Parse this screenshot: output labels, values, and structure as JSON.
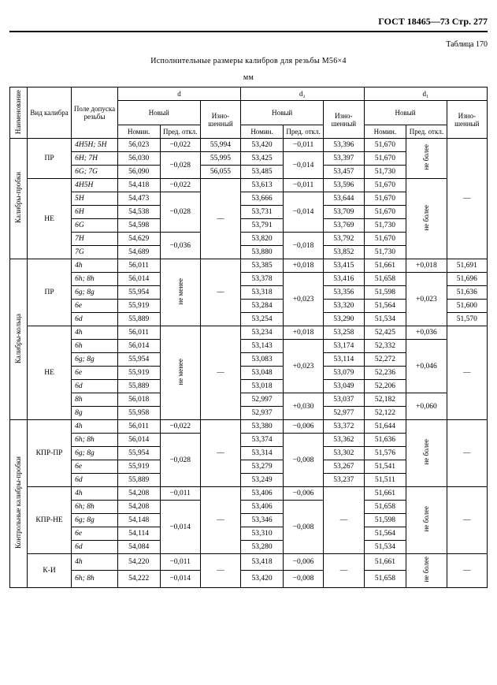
{
  "header": {
    "gost": "ГОСТ 18465—73 Стр. 277",
    "tableNo": "Таблица 170",
    "title1": "Исполнительные размеры калибров для резьбы М56×4",
    "title2": "мм"
  },
  "cols": {
    "naimen": "Наименование",
    "vid": "Вид калибра",
    "pole": "Поле допуска резьбы",
    "d": "d",
    "d2": "d₂",
    "d1": "d₁",
    "novyj": "Новый",
    "nomin": "Номин.",
    "pred": "Пред. откл.",
    "izno": "Изно-шенный",
    "nebolee": "не более",
    "nemenee": "не менее"
  },
  "groups": {
    "kp": "Калибры-пробки",
    "kk": "Калибры-кольца",
    "kkp": "Контрольные калибры-пробки"
  },
  "vid": {
    "PR": "ПР",
    "NE": "НЕ",
    "KPRPR": "КПР-ПР",
    "KPRNE": "КПР-НЕ",
    "KI": "К-И"
  },
  "dash": "—",
  "rows_kp_pr": [
    {
      "pd": "4H5H; 5H",
      "d_nom": "56,023",
      "d_po": "−0,022",
      "d_iz": "55,994",
      "d2_nom": "53,420",
      "d2_po": "−0,011",
      "d2_iz": "53,396",
      "d1_nom": "51,670"
    },
    {
      "pd": "6H; 7H",
      "d_nom": "56,030",
      "d_po": "",
      "d_iz": "55,995",
      "d2_nom": "53,425",
      "d2_po": "",
      "d2_iz": "53,397",
      "d1_nom": "51,670"
    },
    {
      "pd": "6G; 7G",
      "d_nom": "56,090",
      "d_po": "−0,028",
      "d_iz": "56,055",
      "d2_nom": "53,485",
      "d2_po": "−0,014",
      "d2_iz": "53,457",
      "d1_nom": "51,730"
    }
  ],
  "rows_kp_ne": [
    {
      "pd": "4H5H",
      "d_nom": "54,418",
      "d_po": "−0,022",
      "d2_nom": "53,613",
      "d2_po": "−0,011",
      "d2_iz": "53,596",
      "d1_nom": "51,670"
    },
    {
      "pd": "5H",
      "d_nom": "54,473",
      "d_po_span": "−0,028",
      "d2_nom": "53,666",
      "d2_po_span": "−0,014",
      "d2_iz": "53,644",
      "d1_nom": "51,670"
    },
    {
      "pd": "6H",
      "d_nom": "54,538",
      "d2_nom": "53,731",
      "d2_iz": "53,709",
      "d1_nom": "51,670"
    },
    {
      "pd": "6G",
      "d_nom": "54,598",
      "d2_nom": "53,791",
      "d2_iz": "53,769",
      "d1_nom": "51,730"
    },
    {
      "pd": "7H",
      "d_nom": "54,629",
      "d_po": "−0,036",
      "d2_nom": "53,820",
      "d2_po": "−0,018",
      "d2_iz": "53,792",
      "d1_nom": "51,670"
    },
    {
      "pd": "7G",
      "d_nom": "54,689",
      "d2_nom": "53,880",
      "d2_iz": "53,852",
      "d1_nom": "51,730"
    }
  ],
  "rows_kk_pr": [
    {
      "pd": "4h",
      "d_nom": "56,011",
      "d2_nom": "53,385",
      "d2_po": "+0,018",
      "d2_iz": "53,415",
      "d1_nom": "51,661",
      "d1_po": "+0,018",
      "d1_iz": "51,691"
    },
    {
      "pd": "6h; 8h",
      "d_nom": "56,014",
      "d2_nom": "53,378",
      "d2_po_span": "+0,023",
      "d2_iz": "53,416",
      "d1_nom": "51,658",
      "d1_po_span": "+0,023",
      "d1_iz": "51,696"
    },
    {
      "pd": "6g; 8g",
      "d_nom": "55,954",
      "d2_nom": "53,318",
      "d2_iz": "53,356",
      "d1_nom": "51,598",
      "d1_iz": "51,636"
    },
    {
      "pd": "6e",
      "d_nom": "55,919",
      "d2_nom": "53,284",
      "d2_iz": "53,320",
      "d1_nom": "51,564",
      "d1_iz": "51,600"
    },
    {
      "pd": "6d",
      "d_nom": "55,889",
      "d2_nom": "53,254",
      "d2_iz": "53,290",
      "d1_nom": "51,534",
      "d1_iz": "51,570"
    }
  ],
  "rows_kk_ne": [
    {
      "pd": "4h",
      "d_nom": "56,011",
      "d2_nom": "53,234",
      "d2_po": "+0,018",
      "d2_iz": "53,258",
      "d1_nom": "52,425",
      "d1_po": "+0,036"
    },
    {
      "pd": "6h",
      "d_nom": "56,014",
      "d2_nom": "53,143",
      "d2_po_span": "+0,023",
      "d2_iz": "53,174",
      "d1_nom": "52,332",
      "d1_po_span": "+0,046"
    },
    {
      "pd": "6g; 8g",
      "d_nom": "55,954",
      "d2_nom": "53,083",
      "d2_iz": "53,114",
      "d1_nom": "52,272"
    },
    {
      "pd": "6e",
      "d_nom": "55,919",
      "d2_nom": "53,048",
      "d2_iz": "53,079",
      "d1_nom": "52,236"
    },
    {
      "pd": "6d",
      "d_nom": "55,889",
      "d2_nom": "53,018",
      "d2_iz": "53,049",
      "d1_nom": "52,206"
    },
    {
      "pd": "8h",
      "d_nom": "56,018",
      "d2_nom": "52,997",
      "d2_po": "+0,030",
      "d2_iz": "53,037",
      "d1_nom": "52,182",
      "d1_po": "+0,060"
    },
    {
      "pd": "8g",
      "d_nom": "55,958",
      "d2_nom": "52,937",
      "d2_iz": "52,977",
      "d1_nom": "52,122"
    }
  ],
  "rows_kprpr": [
    {
      "pd": "4h",
      "d_nom": "56,011",
      "d_po": "−0,022",
      "d2_nom": "53,380",
      "d2_po": "−0,006",
      "d2_iz": "53,372",
      "d1_nom": "51,644"
    },
    {
      "pd": "6h; 8h",
      "d_nom": "56,014",
      "d_po_span": "−0,028",
      "d2_nom": "53,374",
      "d2_po_span": "−0,008",
      "d2_iz": "53,362",
      "d1_nom": "51,636"
    },
    {
      "pd": "6g; 8g",
      "d_nom": "55,954",
      "d2_nom": "53,314",
      "d2_iz": "53,302",
      "d1_nom": "51,576"
    },
    {
      "pd": "6e",
      "d_nom": "55,919",
      "d2_nom": "53,279",
      "d2_iz": "53,267",
      "d1_nom": "51,541"
    },
    {
      "pd": "6d",
      "d_nom": "55,889",
      "d2_nom": "53,249",
      "d2_iz": "53,237",
      "d1_nom": "51,511"
    }
  ],
  "rows_kprne": [
    {
      "pd": "4h",
      "d_nom": "54,208",
      "d_po": "−0,011",
      "d2_nom": "53,406",
      "d2_po": "−0,006",
      "d1_nom": "51,661"
    },
    {
      "pd": "6h; 8h",
      "d_nom": "54,208",
      "d_po_span": "−0,014",
      "d2_nom": "53,406",
      "d2_po_span": "−0,008",
      "d1_nom": "51,658"
    },
    {
      "pd": "6g; 8g",
      "d_nom": "54,148",
      "d2_nom": "53,346",
      "d1_nom": "51,598"
    },
    {
      "pd": "6e",
      "d_nom": "54,114",
      "d2_nom": "53,310",
      "d1_nom": "51,564"
    },
    {
      "pd": "6d",
      "d_nom": "54,084",
      "d2_nom": "53,280",
      "d1_nom": "51,534"
    }
  ],
  "rows_ki": [
    {
      "pd": "4h",
      "d_nom": "54,220",
      "d_po": "−0,011",
      "d2_nom": "53,418",
      "d2_po": "−0,006",
      "d1_nom": "51,661"
    },
    {
      "pd": "6h; 8h",
      "d_nom": "54,222",
      "d_po": "−0,014",
      "d2_nom": "53,420",
      "d2_po": "−0,008",
      "d1_nom": "51,658"
    }
  ]
}
